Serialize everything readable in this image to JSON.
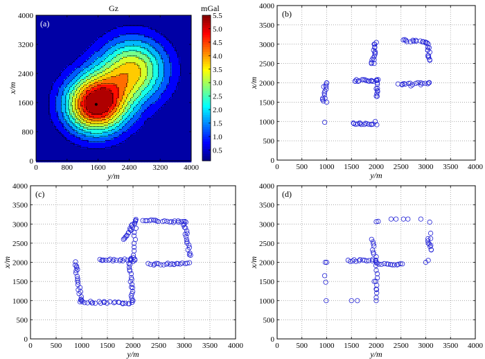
{
  "figure": {
    "colors": {
      "frame": "#000000",
      "grid": "#8c8c8c",
      "marker": "#1f1fd6",
      "colormap": [
        "#00007f",
        "#0000ff",
        "#007fff",
        "#00ffff",
        "#7fff7f",
        "#ffff00",
        "#ff7f00",
        "#ff0000",
        "#7f0000"
      ]
    }
  },
  "chart_data": [
    {
      "id": "a",
      "type": "heatmap",
      "panel_label": "(a)",
      "title": "Gz",
      "xlabel": "y/m",
      "ylabel": "x/m",
      "xlim": [
        0,
        4000
      ],
      "ylim": [
        0,
        4000
      ],
      "xticks": [
        0,
        800,
        1600,
        2400,
        3200,
        4000
      ],
      "yticks": [
        0,
        800,
        1600,
        2400,
        3200,
        4000
      ],
      "grid": false,
      "sources": [
        {
          "y": 1550,
          "x": 1550,
          "peak": 5.5,
          "radius": 560
        },
        {
          "y": 2500,
          "x": 2500,
          "peak": 3.5,
          "radius": 620
        }
      ],
      "contour_levels": [
        0.5,
        1.0,
        1.5,
        2.0,
        2.5,
        3.0,
        3.5,
        4.0,
        4.5,
        5.0
      ],
      "colorbar": {
        "unit": "mGal",
        "min": 0.1,
        "max": 5.5,
        "ticks": [
          "5.5",
          "5.0",
          "4.5",
          "4.0",
          "3.5",
          "3.0",
          "2.5",
          "2.0",
          "1.5",
          "1.0",
          "0.5"
        ]
      }
    },
    {
      "id": "b",
      "type": "scatter",
      "panel_label": "(b)",
      "xlabel": "y/m",
      "ylabel": "x/m",
      "xlim": [
        0,
        4000
      ],
      "ylim": [
        0,
        4000
      ],
      "xticks": [
        0,
        500,
        1000,
        1500,
        2000,
        2500,
        3000,
        3500,
        4000
      ],
      "yticks": [
        0,
        500,
        1000,
        1500,
        2000,
        2500,
        3000,
        3500,
        4000
      ],
      "grid": true,
      "marker": "circle",
      "points": [
        [
          1000,
          2000
        ],
        [
          1000,
          1500
        ],
        [
          1960,
          3000
        ],
        [
          1980,
          2800
        ],
        [
          1960,
          2600
        ],
        [
          1960,
          2500
        ],
        [
          2600,
          3100
        ],
        [
          2800,
          3100
        ],
        [
          3000,
          3050
        ],
        [
          3040,
          2850
        ],
        [
          3040,
          2700
        ],
        [
          3080,
          2600
        ],
        [
          1600,
          2080
        ],
        [
          1800,
          2060
        ],
        [
          2000,
          2060
        ],
        [
          2000,
          1850
        ],
        [
          2020,
          1650
        ],
        [
          2520,
          1950
        ],
        [
          2700,
          1920
        ],
        [
          2900,
          1950
        ],
        [
          3060,
          2000
        ],
        [
          1540,
          960
        ],
        [
          1700,
          920
        ],
        [
          1900,
          920
        ],
        [
          1980,
          1000
        ],
        [
          960,
          980
        ],
        [
          940,
          1900
        ],
        [
          920,
          1600
        ]
      ],
      "segments": [
        {
          "from": [
            930,
            1520
          ],
          "to": [
            1000,
            2000
          ],
          "n": 10
        },
        {
          "from": [
            1920,
            2480
          ],
          "to": [
            2000,
            3040
          ],
          "n": 12
        },
        {
          "from": [
            2550,
            3100
          ],
          "to": [
            3050,
            3050
          ],
          "n": 12
        },
        {
          "from": [
            3050,
            3000
          ],
          "to": [
            3080,
            2600
          ],
          "n": 8
        },
        {
          "from": [
            1550,
            2060
          ],
          "to": [
            2040,
            2060
          ],
          "n": 14
        },
        {
          "from": [
            2020,
            2060
          ],
          "to": [
            2020,
            1640
          ],
          "n": 8
        },
        {
          "from": [
            2460,
            1950
          ],
          "to": [
            3080,
            2000
          ],
          "n": 14
        },
        {
          "from": [
            1530,
            940
          ],
          "to": [
            2000,
            940
          ],
          "n": 12
        }
      ]
    },
    {
      "id": "c",
      "type": "scatter",
      "panel_label": "(c)",
      "xlabel": "y/m",
      "ylabel": "x/m",
      "xlim": [
        0,
        4000
      ],
      "ylim": [
        0,
        4000
      ],
      "xticks": [
        0,
        500,
        1000,
        1500,
        2000,
        2500,
        3000,
        3500,
        4000
      ],
      "yticks": [
        0,
        500,
        1000,
        1500,
        2000,
        2500,
        3000,
        3500,
        4000
      ],
      "grid": true,
      "marker": "circle",
      "points": [
        [
          900,
          1900
        ],
        [
          1000,
          1000
        ],
        [
          1200,
          940
        ],
        [
          1800,
          920
        ],
        [
          2000,
          1000
        ],
        [
          1960,
          2100
        ],
        [
          2400,
          3100
        ],
        [
          3000,
          3000
        ],
        [
          3100,
          2200
        ],
        [
          2800,
          1950
        ],
        [
          1400,
          2050
        ]
      ],
      "segments": [
        {
          "from": [
            880,
            2000
          ],
          "to": [
            980,
            1000
          ],
          "n": 18
        },
        {
          "from": [
            980,
            960
          ],
          "to": [
            1990,
            940
          ],
          "n": 22
        },
        {
          "from": [
            1360,
            2060
          ],
          "to": [
            2060,
            2060
          ],
          "n": 18
        },
        {
          "from": [
            1940,
            2060
          ],
          "to": [
            1990,
            1000
          ],
          "n": 18
        },
        {
          "from": [
            1830,
            2600
          ],
          "to": [
            2040,
            3080
          ],
          "n": 16
        },
        {
          "from": [
            2200,
            3100
          ],
          "to": [
            3050,
            3050
          ],
          "n": 20
        },
        {
          "from": [
            3000,
            3050
          ],
          "to": [
            3100,
            2200
          ],
          "n": 16
        },
        {
          "from": [
            2300,
            1950
          ],
          "to": [
            3100,
            1970
          ],
          "n": 20
        },
        {
          "from": [
            2040,
            3100
          ],
          "to": [
            2020,
            2000
          ],
          "n": 12
        }
      ]
    },
    {
      "id": "d",
      "type": "scatter",
      "panel_label": "(d)",
      "xlabel": "y/m",
      "ylabel": "x/m",
      "xlim": [
        0,
        4000
      ],
      "ylim": [
        0,
        4000
      ],
      "xticks": [
        0,
        500,
        1000,
        1500,
        2000,
        2500,
        3000,
        3500,
        4000
      ],
      "yticks": [
        0,
        500,
        1000,
        1500,
        2000,
        2500,
        3000,
        3500,
        4000
      ],
      "grid": true,
      "marker": "circle",
      "points": [
        [
          970,
          2000
        ],
        [
          1000,
          2000
        ],
        [
          960,
          1650
        ],
        [
          980,
          1480
        ],
        [
          990,
          1000
        ],
        [
          1500,
          1000
        ],
        [
          1620,
          1000
        ],
        [
          2000,
          1000
        ],
        [
          2000,
          1080
        ],
        [
          2010,
          1200
        ],
        [
          1960,
          1500
        ],
        [
          2000,
          1300
        ],
        [
          2000,
          3060
        ],
        [
          2040,
          3070
        ],
        [
          2300,
          3130
        ],
        [
          2400,
          3130
        ],
        [
          2550,
          3130
        ],
        [
          2640,
          3130
        ],
        [
          2900,
          3130
        ],
        [
          3080,
          3050
        ],
        [
          3100,
          2760
        ],
        [
          3100,
          2620
        ],
        [
          3000,
          2000
        ],
        [
          3050,
          2050
        ]
      ],
      "segments": [
        {
          "from": [
            1440,
            2040
          ],
          "to": [
            1990,
            2060
          ],
          "n": 14
        },
        {
          "from": [
            1900,
            2600
          ],
          "to": [
            2000,
            2000
          ],
          "n": 10
        },
        {
          "from": [
            2000,
            2000
          ],
          "to": [
            2000,
            1300
          ],
          "n": 8
        },
        {
          "from": [
            2060,
            1950
          ],
          "to": [
            2550,
            1950
          ],
          "n": 12
        },
        {
          "from": [
            3050,
            2600
          ],
          "to": [
            3100,
            2300
          ],
          "n": 8
        }
      ]
    }
  ]
}
